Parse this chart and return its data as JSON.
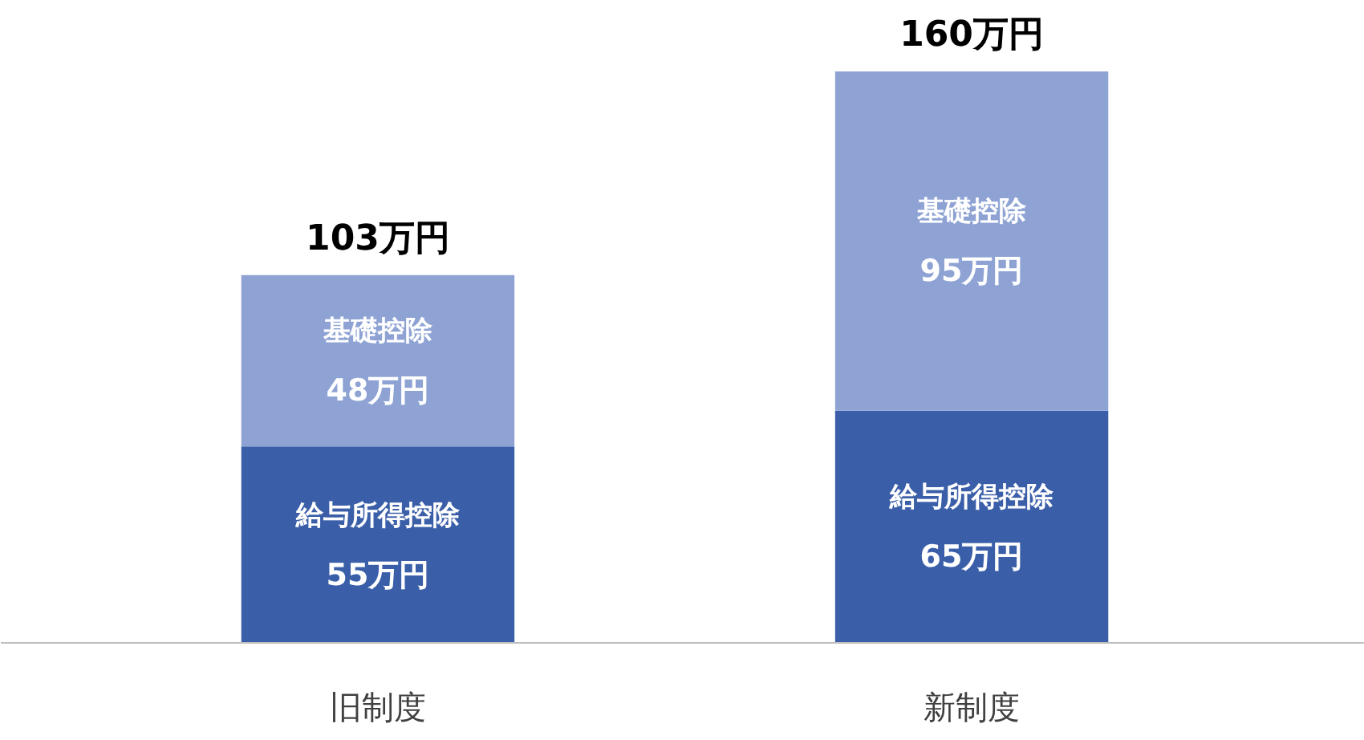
{
  "chart_data": {
    "type": "bar",
    "categories": [
      "旧制度",
      "新制度"
    ],
    "stacked": true,
    "series": [
      {
        "name": "給与所得控除",
        "color": "#3a5fa8",
        "values": [
          55,
          65
        ],
        "value_labels": [
          "55万円",
          "65万円"
        ]
      },
      {
        "name": "基礎控除",
        "color": "#8ea3d4",
        "values": [
          48,
          95
        ],
        "value_labels": [
          "48万円",
          "95万円"
        ]
      }
    ],
    "totals": [
      "103万円",
      "160万円"
    ]
  }
}
